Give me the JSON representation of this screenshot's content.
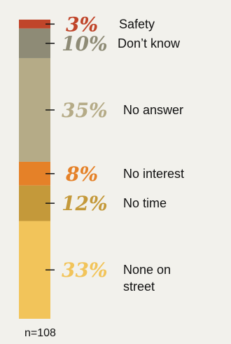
{
  "chart_data": {
    "type": "bar",
    "stacked": true,
    "orientation": "vertical",
    "unit": "%",
    "segments": [
      {
        "label": "Safety",
        "value": 3,
        "value_text": "3%",
        "color": "#c0452a"
      },
      {
        "label": "Don’t know",
        "value": 10,
        "value_text": "10%",
        "color": "#8e8b76"
      },
      {
        "label": "No answer",
        "value": 35,
        "value_text": "35%",
        "color": "#b5ab87"
      },
      {
        "label": "No interest",
        "value": 8,
        "value_text": "8%",
        "color": "#e58128"
      },
      {
        "label": "No time",
        "value": 12,
        "value_text": "12%",
        "color": "#c4993a"
      },
      {
        "label": "None on street",
        "label_lines": [
          "None on",
          "street"
        ],
        "value": 33,
        "value_text": "33%",
        "color": "#f2c45a"
      }
    ],
    "percent_colors": [
      "#c0452a",
      "#8e8b76",
      "#b5ab87",
      "#e58128",
      "#c4993a",
      "#f2c45a"
    ]
  },
  "footnote": "n=108"
}
